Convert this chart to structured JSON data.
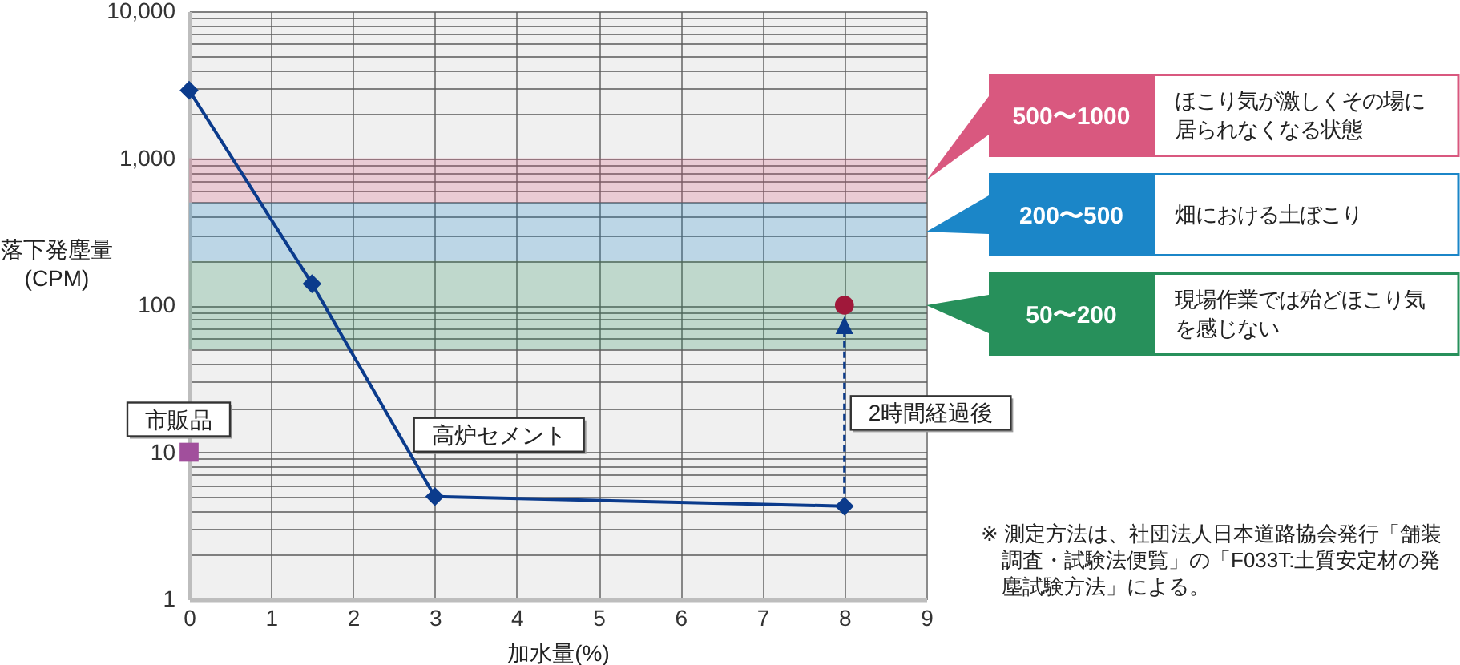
{
  "chart_data": {
    "type": "line",
    "xlabel": "加水量(%)",
    "ylabel": "落下発塵量 (CPM)",
    "xlim": [
      0,
      9
    ],
    "xticks": [
      0,
      1,
      2,
      3,
      4,
      5,
      6,
      7,
      8,
      9
    ],
    "ylim": [
      1,
      10000
    ],
    "yticks": [
      1,
      {
        "value": 2,
        "label": null
      },
      {
        "value": 3,
        "label": null
      },
      {
        "value": 4,
        "label": null
      },
      {
        "value": 5,
        "label": null
      },
      {
        "value": 6,
        "label": null
      },
      {
        "value": 7,
        "label": null
      },
      {
        "value": 8,
        "label": null
      },
      {
        "value": 9,
        "label": null
      },
      10,
      {
        "value": 20,
        "label": null
      },
      {
        "value": 30,
        "label": null
      },
      {
        "value": 40,
        "label": null
      },
      {
        "value": 50,
        "label": null
      },
      {
        "value": 60,
        "label": null
      },
      {
        "value": 70,
        "label": null
      },
      {
        "value": 80,
        "label": null
      },
      {
        "value": 90,
        "label": null
      },
      100,
      {
        "value": 200,
        "label": null
      },
      {
        "value": 300,
        "label": null
      },
      {
        "value": 400,
        "label": null
      },
      {
        "value": 500,
        "label": null
      },
      {
        "value": 600,
        "label": null
      },
      {
        "value": 700,
        "label": null
      },
      {
        "value": 800,
        "label": null
      },
      {
        "value": 900,
        "label": null
      },
      {
        "value": 1000,
        "label": "1,000"
      },
      {
        "value": 2000,
        "label": null
      },
      {
        "value": 3000,
        "label": null
      },
      {
        "value": 4000,
        "label": null
      },
      {
        "value": 5000,
        "label": null
      },
      {
        "value": 6000,
        "label": null
      },
      {
        "value": 7000,
        "label": null
      },
      {
        "value": 8000,
        "label": null
      },
      {
        "value": 9000,
        "label": null
      },
      {
        "value": 10000,
        "label": "10,000"
      }
    ],
    "log": "y",
    "grid": true,
    "series": [
      {
        "name": "高炉セメント",
        "color": "#0b3b8c",
        "x": [
          0,
          1.5,
          3,
          8
        ],
        "values": [
          2900,
          140,
          5,
          4.3
        ],
        "marker": "diamond"
      },
      {
        "name": "市販品",
        "type": "scatter",
        "color": "#a14f9c",
        "x": [
          0
        ],
        "values": [
          10
        ],
        "marker": "square"
      },
      {
        "type": "scatter",
        "color": "#a0183a",
        "x": [
          8
        ],
        "values": [
          100
        ],
        "marker": "circle"
      }
    ],
    "bands": [
      {
        "axis": "y",
        "from": 500,
        "to": 1000,
        "color": "#d9587f"
      },
      {
        "axis": "y",
        "from": 200,
        "to": 500,
        "color": "#1b86c8"
      },
      {
        "axis": "y",
        "from": 50,
        "to": 200,
        "color": "#27905b"
      }
    ],
    "annotations": [
      "500〜1000",
      "ほこり気が激しくその場に居られなくなる状態",
      "200〜500",
      "畑における土ぼこり",
      "50〜200",
      "現場作業では殆どほこり気を感じない",
      "2時間経過後",
      "※ 測定方法は、社団法人日本道路協会発行「舗装調査・試験法便覧」の「F033T:土質安定材の発塵試験方法」による。"
    ]
  }
}
